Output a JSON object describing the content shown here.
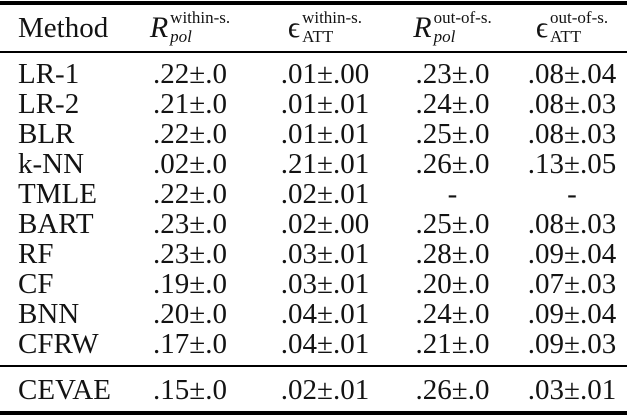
{
  "colors": {
    "background": "#ffffff",
    "text": "#131313",
    "rule": "#000000"
  },
  "table": {
    "header": {
      "method_label": "Method",
      "columns": [
        {
          "symbol": "R",
          "sub": "pol",
          "sup": "within-s."
        },
        {
          "symbol": "ϵ",
          "sub": "ATT",
          "sup": "within-s."
        },
        {
          "symbol": "R",
          "sub": "pol",
          "sup": "out-of-s."
        },
        {
          "symbol": "ϵ",
          "sub": "ATT",
          "sup": "out-of-s."
        }
      ]
    },
    "rows": [
      {
        "method": "LR-1",
        "values": [
          ".22±.0",
          ".01±.00",
          ".23±.0",
          ".08±.04"
        ]
      },
      {
        "method": "LR-2",
        "values": [
          ".21±.0",
          ".01±.01",
          ".24±.0",
          ".08±.03"
        ]
      },
      {
        "method": "BLR",
        "values": [
          ".22±.0",
          ".01±.01",
          ".25±.0",
          ".08±.03"
        ]
      },
      {
        "method": "k-NN",
        "values": [
          ".02±.0",
          ".21±.01",
          ".26±.0",
          ".13±.05"
        ]
      },
      {
        "method": "TMLE",
        "values": [
          ".22±.0",
          ".02±.01",
          "-",
          "-"
        ]
      },
      {
        "method": "BART",
        "values": [
          ".23±.0",
          ".02±.00",
          ".25±.0",
          ".08±.03"
        ]
      },
      {
        "method": "RF",
        "values": [
          ".23±.0",
          ".03±.01",
          ".28±.0",
          ".09±.04"
        ]
      },
      {
        "method": "CF",
        "values": [
          ".19±.0",
          ".03±.01",
          ".20±.0",
          ".07±.03"
        ]
      },
      {
        "method": "BNN",
        "values": [
          ".20±.0",
          ".04±.01",
          ".24±.0",
          ".09±.04"
        ]
      },
      {
        "method": "CFRW",
        "values": [
          ".17±.0",
          ".04±.01",
          ".21±.0",
          ".09±.03"
        ]
      }
    ],
    "highlight_row": {
      "method": "CEVAE",
      "values": [
        ".15±.0",
        ".02±.01",
        ".26±.0",
        ".03±.01"
      ]
    }
  }
}
